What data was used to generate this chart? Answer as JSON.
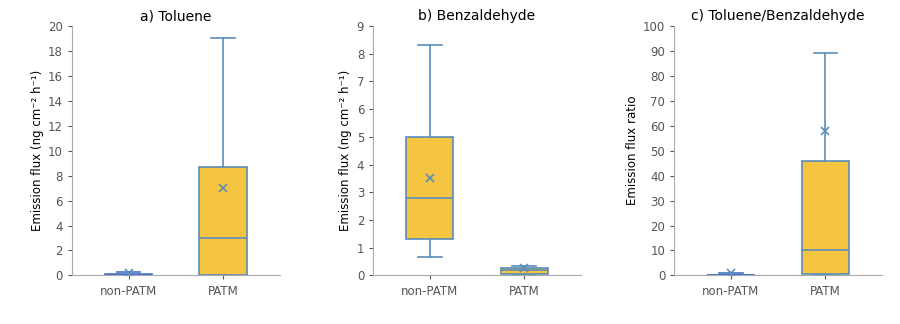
{
  "panels": [
    {
      "title": "a) Toluene",
      "ylabel": "Emission flux (ng cm⁻² h⁻¹)",
      "ylim": [
        0,
        20
      ],
      "yticks": [
        0,
        2,
        4,
        6,
        8,
        10,
        12,
        14,
        16,
        18,
        20
      ],
      "groups": [
        "non-PATM",
        "PATM"
      ],
      "boxes": [
        {
          "q1": 0.0,
          "median": 0.05,
          "q3": 0.12,
          "whislo": 0.0,
          "whishi": 0.3,
          "mean": 0.2,
          "is_small": true
        },
        {
          "q1": 0.0,
          "median": 3.0,
          "q3": 8.7,
          "whislo": 0.0,
          "whishi": 19.0,
          "mean": 7.0,
          "is_small": false
        }
      ]
    },
    {
      "title": "b) Benzaldehyde",
      "ylabel": "Emission flux (ng cm⁻² h⁻¹)",
      "ylim": [
        0,
        9
      ],
      "yticks": [
        0,
        1,
        2,
        3,
        4,
        5,
        6,
        7,
        8,
        9
      ],
      "groups": [
        "non-PATM",
        "PATM"
      ],
      "boxes": [
        {
          "q1": 1.3,
          "median": 2.8,
          "q3": 5.0,
          "whislo": 0.65,
          "whishi": 8.3,
          "mean": 3.5,
          "is_small": false
        },
        {
          "q1": 0.05,
          "median": 0.18,
          "q3": 0.27,
          "whislo": 0.0,
          "whishi": 0.35,
          "mean": 0.28,
          "is_small": false
        }
      ]
    },
    {
      "title": "c) Toluene/Benzaldehyde",
      "ylabel": "Emission flux ratio",
      "ylim": [
        0,
        100
      ],
      "yticks": [
        0,
        10,
        20,
        30,
        40,
        50,
        60,
        70,
        80,
        90,
        100
      ],
      "groups": [
        "non-PATM",
        "PATM"
      ],
      "boxes": [
        {
          "q1": 0.0,
          "median": 0.0,
          "q3": 0.2,
          "whislo": 0.0,
          "whishi": 1.0,
          "mean": 1.0,
          "is_small": true
        },
        {
          "q1": 0.5,
          "median": 10.0,
          "q3": 46.0,
          "whislo": 0.0,
          "whishi": 89.0,
          "mean": 58.0,
          "is_small": false
        }
      ]
    }
  ],
  "box_color_normal": "#F5C542",
  "box_color_small": "#4472C4",
  "box_edge_color": "#5B8DB8",
  "box_edge_color_small": "#4472C4",
  "whisker_color": "#5B8DB8",
  "whisker_color_small": "#4472C4",
  "median_color": "#5B8DB8",
  "median_color_small": "#4472C4",
  "mean_marker_color": "#5B8DB8",
  "mean_marker": "x",
  "mean_markersize": 6,
  "mean_markeredgewidth": 1.2,
  "background_color": "#ffffff",
  "box_width": 0.5,
  "spine_color": "#aaaaaa",
  "tick_color": "#555555",
  "title_fontsize": 10,
  "label_fontsize": 8.5,
  "tick_fontsize": 8.5
}
